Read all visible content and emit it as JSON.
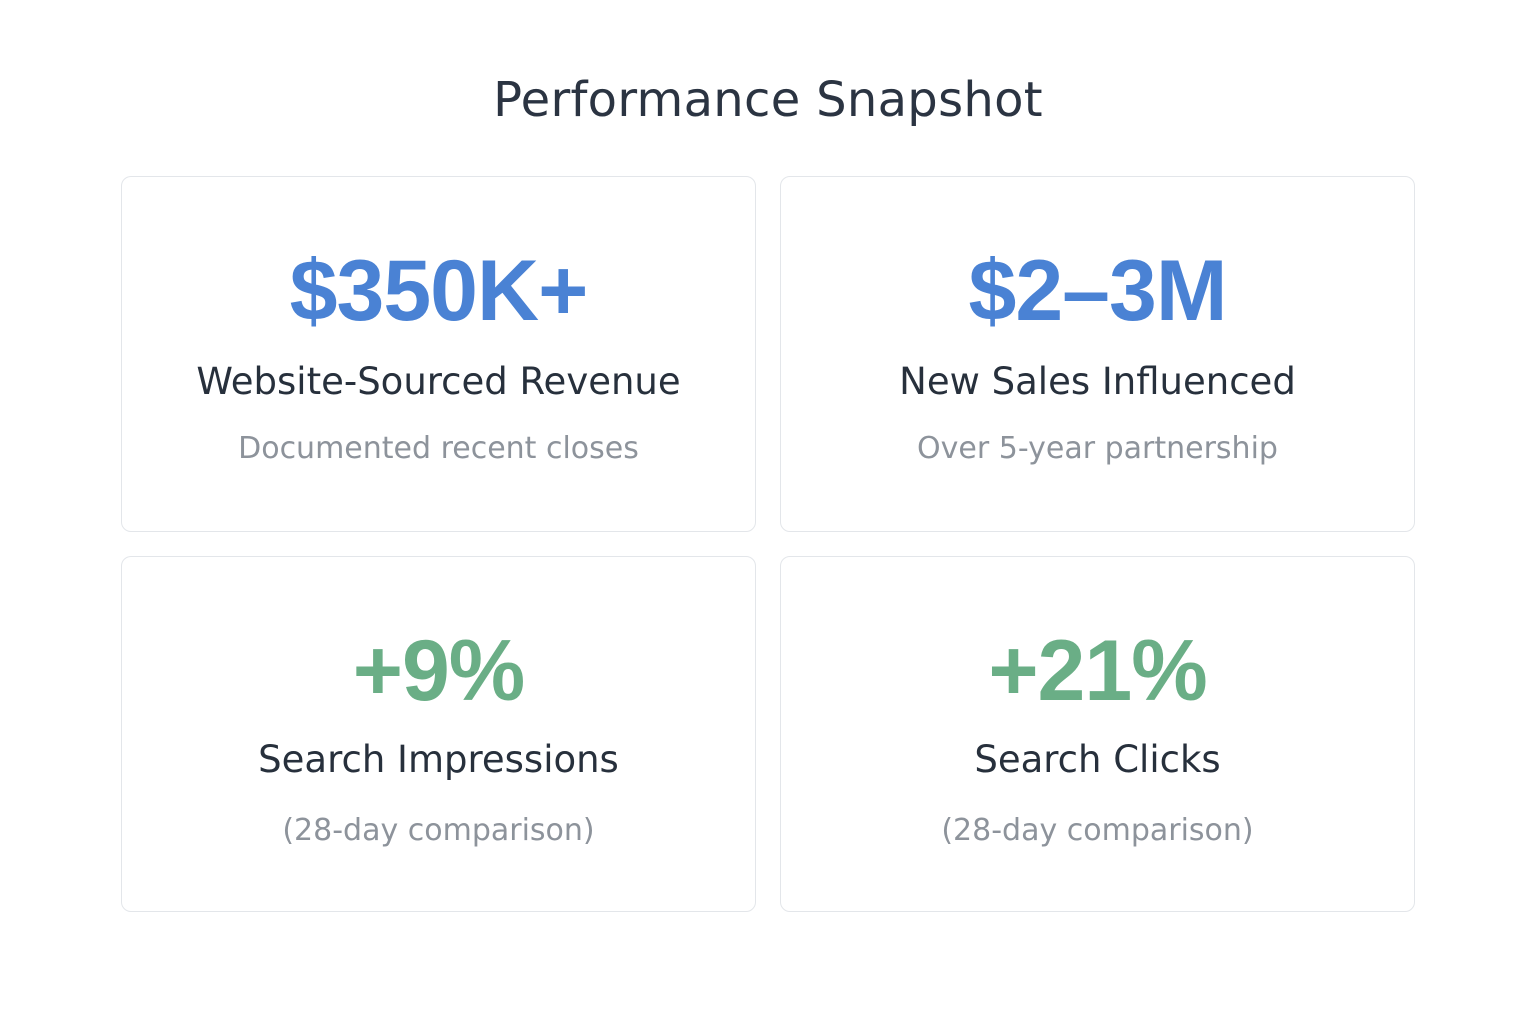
{
  "title": "Performance Snapshot",
  "colors": {
    "title": "#2b3442",
    "revenue_metric": "#4a82d4",
    "growth_metric": "#6aae86",
    "label": "#27303c",
    "sublabel": "#8d939b",
    "card_border": "#e3e6ea"
  },
  "cards": [
    {
      "value": "$350K+",
      "label": "Website-Sourced Revenue",
      "sublabel": "Documented recent closes"
    },
    {
      "value": "$2–3M",
      "label": "New Sales Influenced",
      "sublabel": "Over 5-year partnership"
    },
    {
      "value": "+9%",
      "label": "Search Impressions",
      "sublabel": "(28-day comparison)"
    },
    {
      "value": "+21%",
      "label": "Search Clicks",
      "sublabel": "(28-day comparison)"
    }
  ]
}
